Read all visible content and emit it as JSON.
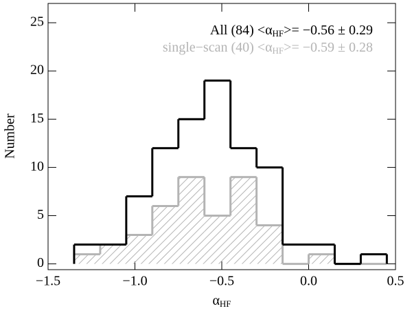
{
  "chart_data": {
    "type": "histogram",
    "x_label": "αHF",
    "y_label": "Number",
    "bins": [
      -1.35,
      -1.2,
      -1.05,
      -0.9,
      -0.75,
      -0.6,
      -0.45,
      -0.3,
      -0.15,
      0.0,
      0.15,
      0.3,
      0.45
    ],
    "series": [
      {
        "name": "All (84) <αHF>= −0.56 ± 0.29",
        "color": "#000000",
        "hatch": false,
        "values": [
          2,
          2,
          7,
          12,
          15,
          19,
          12,
          10,
          2,
          2,
          0,
          1
        ]
      },
      {
        "name": "single−scan (40) <αHF>= −0.59 ± 0.28",
        "color": "#b4b4b4",
        "hatch": true,
        "values": [
          1,
          2,
          3,
          6,
          9,
          5,
          9,
          4,
          0,
          1,
          0,
          0
        ]
      }
    ],
    "xlim": [
      -1.5,
      0.5
    ],
    "xticks": [
      {
        "value": -1.5,
        "label": "−1.5"
      },
      {
        "value": -1.0,
        "label": "−1.0"
      },
      {
        "value": -0.5,
        "label": "−0.5"
      },
      {
        "value": 0.0,
        "label": "0.0"
      },
      0.5
    ],
    "ylim": [
      -0.6,
      27
    ],
    "yticks": [
      0,
      5,
      10,
      15,
      20,
      25
    ],
    "legend": "upper right"
  }
}
